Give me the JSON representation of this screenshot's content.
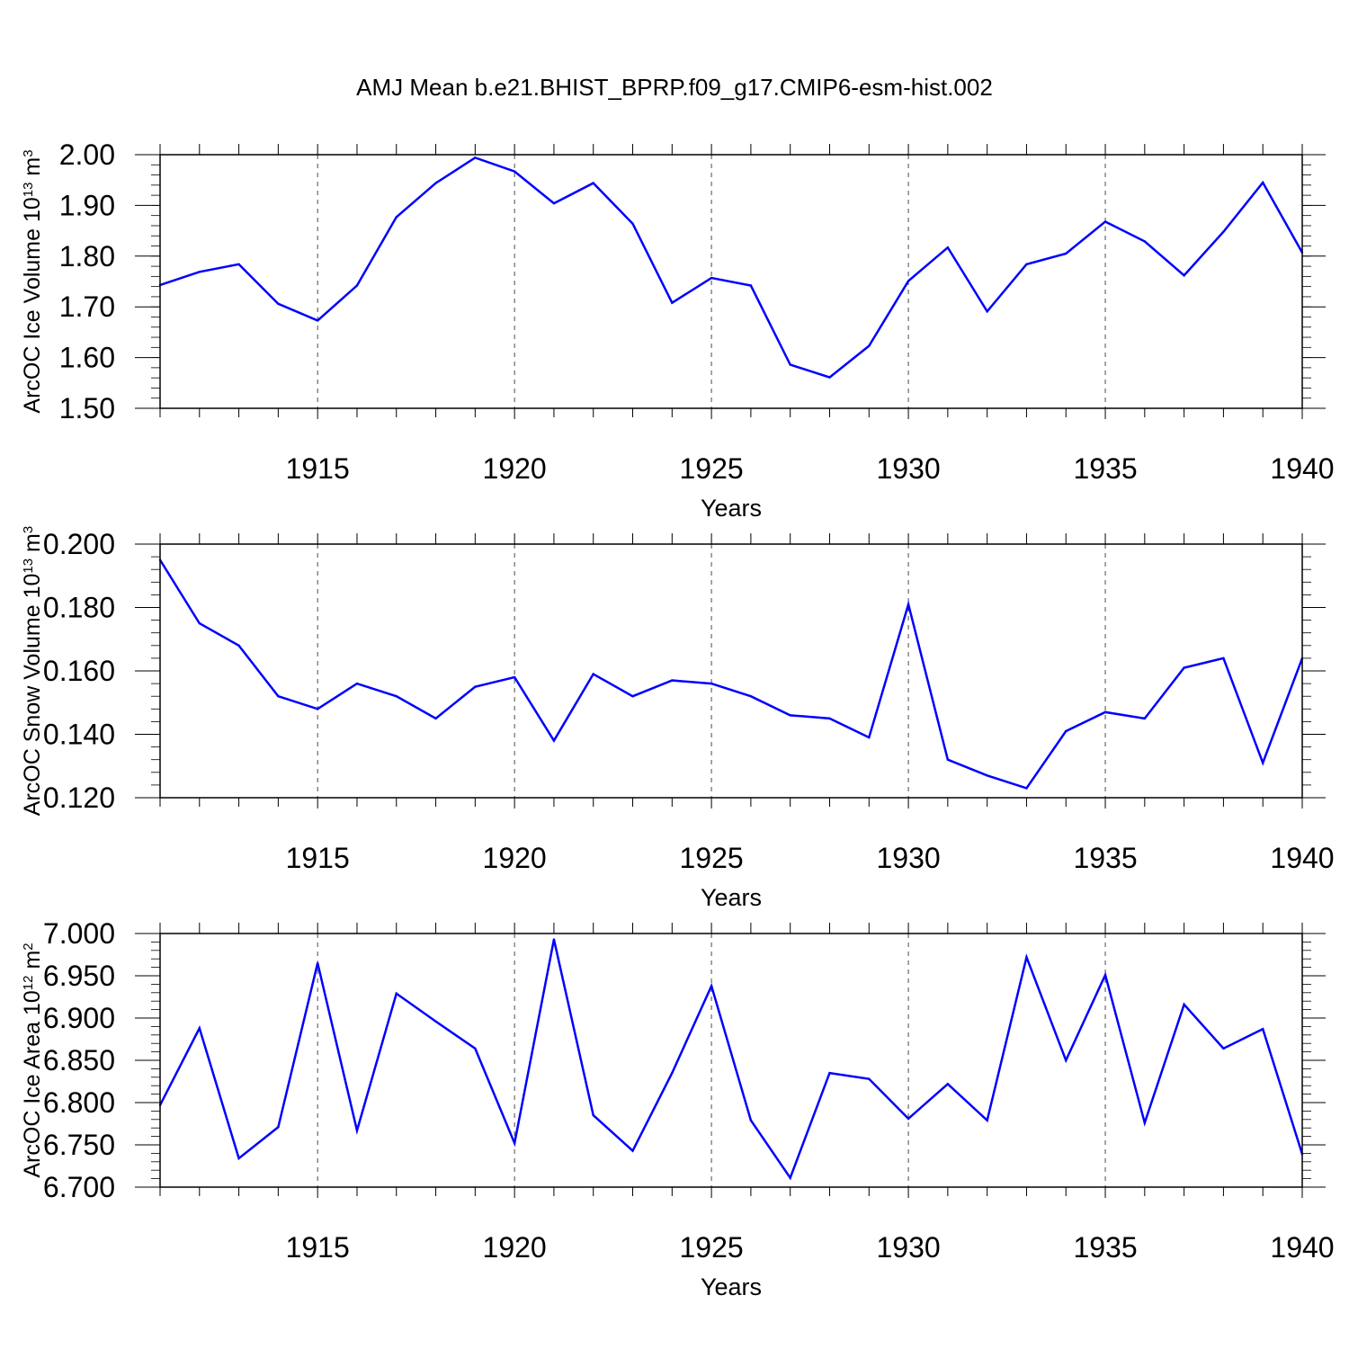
{
  "title": "AMJ Mean b.e21.BHIST_BPRP.f09_g17.CMIP6-esm-hist.002",
  "colors": {
    "series": "#0000ff",
    "axis": "#000000",
    "grid": "#000000"
  },
  "chart_data": [
    {
      "type": "line",
      "name": "ice-volume",
      "ylabel": {
        "main": "ArcOC Ice Volume 10",
        "exp1": "13",
        "mid": " m",
        "exp2": "3"
      },
      "xlabel": "Years",
      "xlim": [
        1911,
        1940
      ],
      "ylim": [
        1.5,
        2.0
      ],
      "xticks": [
        1915,
        1920,
        1925,
        1930,
        1935,
        1940
      ],
      "yticks": [
        1.5,
        1.6,
        1.7,
        1.8,
        1.9,
        2.0
      ],
      "ytick_labels": [
        "1.50",
        "1.60",
        "1.70",
        "1.80",
        "1.90",
        "2.00"
      ],
      "y_minor_step": 0.02,
      "x": [
        1911,
        1912,
        1913,
        1914,
        1915,
        1916,
        1917,
        1918,
        1919,
        1920,
        1921,
        1922,
        1923,
        1924,
        1925,
        1926,
        1927,
        1928,
        1929,
        1930,
        1931,
        1932,
        1933,
        1934,
        1935,
        1936,
        1937,
        1938,
        1939,
        1940
      ],
      "values": [
        1.743,
        1.769,
        1.784,
        1.706,
        1.673,
        1.742,
        1.877,
        1.944,
        1.994,
        1.967,
        1.904,
        1.944,
        1.864,
        1.708,
        1.757,
        1.742,
        1.586,
        1.561,
        1.623,
        1.751,
        1.817,
        1.691,
        1.784,
        1.805,
        1.868,
        1.829,
        1.762,
        1.848,
        1.945,
        1.807
      ]
    },
    {
      "type": "line",
      "name": "snow-volume",
      "ylabel": {
        "main": "ArcOC Snow Volume 10",
        "exp1": "13",
        "mid": " m",
        "exp2": "3"
      },
      "xlabel": "Years",
      "xlim": [
        1911,
        1940
      ],
      "ylim": [
        0.12,
        0.2
      ],
      "xticks": [
        1915,
        1920,
        1925,
        1930,
        1935,
        1940
      ],
      "yticks": [
        0.12,
        0.14,
        0.16,
        0.18,
        0.2
      ],
      "ytick_labels": [
        "0.120",
        "0.140",
        "0.160",
        "0.180",
        "0.200"
      ],
      "y_minor_step": 0.004,
      "x": [
        1911,
        1912,
        1913,
        1914,
        1915,
        1916,
        1917,
        1918,
        1919,
        1920,
        1921,
        1922,
        1923,
        1924,
        1925,
        1926,
        1927,
        1928,
        1929,
        1930,
        1931,
        1932,
        1933,
        1934,
        1935,
        1936,
        1937,
        1938,
        1939,
        1940
      ],
      "values": [
        0.195,
        0.175,
        0.168,
        0.152,
        0.148,
        0.156,
        0.152,
        0.145,
        0.155,
        0.158,
        0.138,
        0.159,
        0.152,
        0.157,
        0.156,
        0.152,
        0.146,
        0.145,
        0.139,
        0.181,
        0.132,
        0.127,
        0.123,
        0.141,
        0.147,
        0.145,
        0.161,
        0.164,
        0.131,
        0.164
      ]
    },
    {
      "type": "line",
      "name": "ice-area",
      "ylabel": {
        "main": "ArcOC Ice Area 10",
        "exp1": "12",
        "mid": " m",
        "exp2": "2"
      },
      "xlabel": "Years",
      "xlim": [
        1911,
        1940
      ],
      "ylim": [
        6.7,
        7.0
      ],
      "xticks": [
        1915,
        1920,
        1925,
        1930,
        1935,
        1940
      ],
      "yticks": [
        6.7,
        6.75,
        6.8,
        6.85,
        6.9,
        6.95,
        7.0
      ],
      "ytick_labels": [
        "6.700",
        "6.750",
        "6.800",
        "6.850",
        "6.900",
        "6.950",
        "7.000"
      ],
      "y_minor_step": 0.01,
      "x": [
        1911,
        1912,
        1913,
        1914,
        1915,
        1916,
        1917,
        1918,
        1919,
        1920,
        1921,
        1922,
        1923,
        1924,
        1925,
        1926,
        1927,
        1928,
        1929,
        1930,
        1931,
        1932,
        1933,
        1934,
        1935,
        1936,
        1937,
        1938,
        1939,
        1940
      ],
      "values": [
        6.797,
        6.888,
        6.734,
        6.771,
        6.965,
        6.767,
        6.929,
        6.896,
        6.864,
        6.752,
        6.993,
        6.785,
        6.743,
        6.835,
        6.938,
        6.779,
        6.711,
        6.835,
        6.828,
        6.781,
        6.822,
        6.779,
        6.972,
        6.85,
        6.951,
        6.776,
        6.916,
        6.864,
        6.887,
        6.739
      ]
    }
  ]
}
